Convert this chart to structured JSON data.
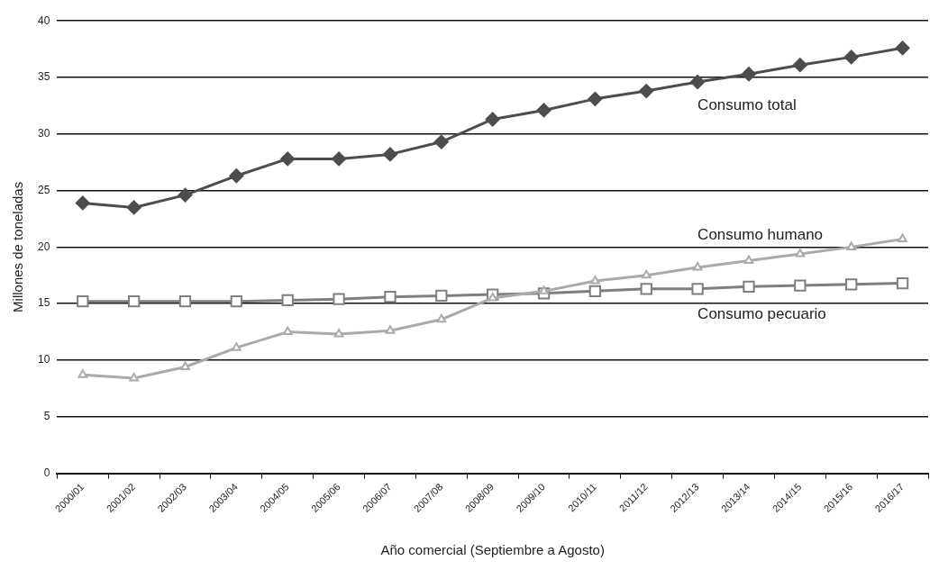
{
  "chart_data": {
    "type": "line",
    "xlabel": "Año comercial (Septiembre a Agosto)",
    "ylabel": "Millones de toneladas",
    "categories": [
      "2000/01",
      "2001/02",
      "2002/03",
      "2003/04",
      "2004/05",
      "2005/06",
      "2006/07",
      "2007/08",
      "2008/09",
      "2009/10",
      "2010/11",
      "2011/12",
      "2012/13",
      "2013/14",
      "2014/15",
      "2015/16",
      "2016/17"
    ],
    "series": [
      {
        "name": "Consumo total",
        "color": "#4d4d4d",
        "marker": "diamond",
        "values": [
          23.9,
          23.5,
          24.6,
          26.3,
          27.8,
          27.8,
          28.2,
          29.3,
          31.3,
          32.1,
          33.1,
          33.8,
          34.6,
          35.3,
          36.1,
          36.8,
          37.6
        ]
      },
      {
        "name": "Consumo humano",
        "color": "#aaaaaa",
        "marker": "triangle",
        "values": [
          8.7,
          8.4,
          9.4,
          11.1,
          12.5,
          12.3,
          12.6,
          13.6,
          15.5,
          16.1,
          17.0,
          17.5,
          18.2,
          18.8,
          19.4,
          20.0,
          20.7
        ]
      },
      {
        "name": "Consumo pecuario",
        "color": "#7f7f7f",
        "marker": "square",
        "values": [
          15.2,
          15.2,
          15.2,
          15.2,
          15.3,
          15.4,
          15.6,
          15.7,
          15.8,
          15.9,
          16.1,
          16.3,
          16.3,
          16.5,
          16.6,
          16.7,
          16.8
        ]
      }
    ],
    "ylim": [
      0,
      40
    ],
    "yticks": [
      0,
      5,
      10,
      15,
      20,
      25,
      30,
      35,
      40
    ],
    "grid": "y",
    "legend": false
  }
}
